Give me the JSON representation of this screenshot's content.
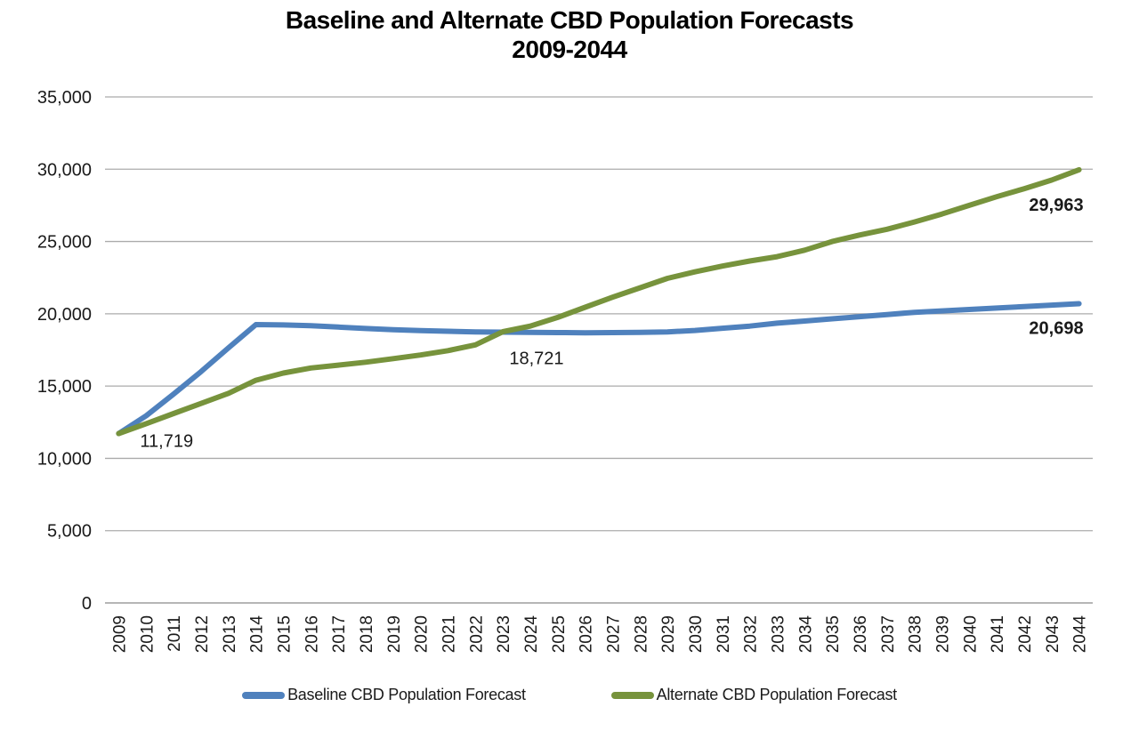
{
  "chart_data": {
    "type": "line",
    "title": "Baseline and Alternate CBD Population Forecasts",
    "subtitle": "2009-2044",
    "x_categories": [
      2009,
      2010,
      2011,
      2012,
      2013,
      2014,
      2015,
      2016,
      2017,
      2018,
      2019,
      2020,
      2021,
      2022,
      2023,
      2024,
      2025,
      2026,
      2027,
      2028,
      2029,
      2030,
      2031,
      2032,
      2033,
      2034,
      2035,
      2036,
      2037,
      2038,
      2039,
      2040,
      2041,
      2042,
      2043,
      2044
    ],
    "series": [
      {
        "name": "Baseline CBD Population Forecast",
        "color": "#4F81BD",
        "values": [
          11719,
          12950,
          14450,
          16000,
          17650,
          19250,
          19230,
          19180,
          19080,
          18980,
          18900,
          18840,
          18790,
          18750,
          18730,
          18721,
          18700,
          18690,
          18700,
          18720,
          18750,
          18850,
          19000,
          19150,
          19350,
          19500,
          19650,
          19800,
          19950,
          20100,
          20200,
          20300,
          20400,
          20500,
          20600,
          20698
        ]
      },
      {
        "name": "Alternate CBD Population Forecast",
        "color": "#77933C",
        "values": [
          11719,
          12400,
          13100,
          13800,
          14500,
          15400,
          15900,
          16250,
          16450,
          16650,
          16900,
          17150,
          17450,
          17850,
          18760,
          19150,
          19750,
          20450,
          21150,
          21800,
          22450,
          22900,
          23300,
          23650,
          23950,
          24400,
          25000,
          25450,
          25850,
          26350,
          26900,
          27500,
          28100,
          28650,
          29250,
          29963
        ]
      }
    ],
    "y_axis": {
      "min": 0,
      "max": 35000,
      "step": 5000,
      "tick_labels": [
        "0",
        "5,000",
        "10,000",
        "15,000",
        "20,000",
        "25,000",
        "30,000",
        "35,000"
      ]
    },
    "grid": "horizontal",
    "grid_color": "#ABABAB",
    "text_color": "#1a1a1a",
    "legend_position": "bottom",
    "annotations": [
      {
        "series": "Baseline CBD Population Forecast",
        "year": 2009,
        "value": 11719,
        "text": "11,719",
        "bold": false
      },
      {
        "series": "Baseline CBD Population Forecast",
        "year": 2024,
        "value": 18721,
        "text": "18,721",
        "bold": false
      },
      {
        "series": "Alternate CBD Population Forecast",
        "year": 2044,
        "value": 29963,
        "text": "29,963",
        "bold": true
      },
      {
        "series": "Baseline CBD Population Forecast",
        "year": 2044,
        "value": 20698,
        "text": "20,698",
        "bold": true
      }
    ]
  }
}
